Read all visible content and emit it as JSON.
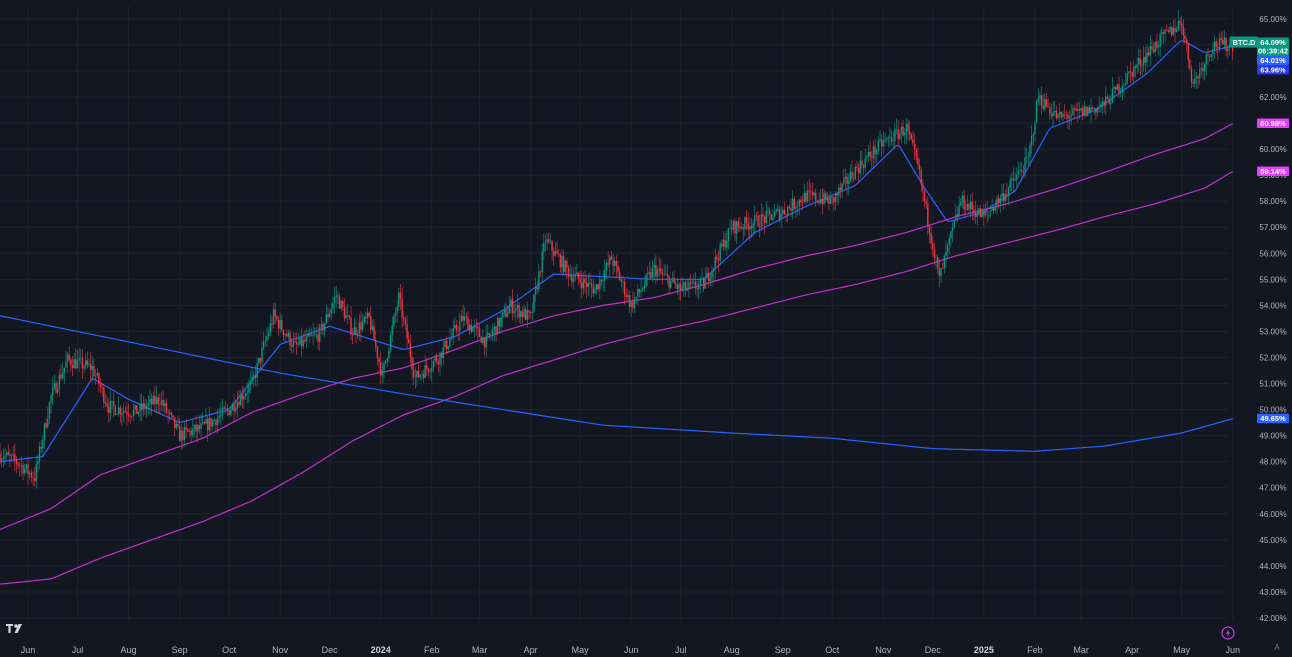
{
  "chart_data": {
    "type": "candlestick",
    "symbol": "BTC.D",
    "y_axis": {
      "unit": "%",
      "ylim": [
        42.0,
        65.3
      ],
      "ticks": [
        "65.00%",
        "64.00%",
        "63.00%",
        "62.00%",
        "61.00%",
        "60.00%",
        "59.00%",
        "58.00%",
        "57.00%",
        "56.00%",
        "55.00%",
        "54.00%",
        "53.00%",
        "52.00%",
        "51.00%",
        "50.00%",
        "49.00%",
        "48.00%",
        "47.00%",
        "46.00%",
        "45.00%",
        "44.00%",
        "43.00%",
        "42.00%"
      ]
    },
    "x_axis": {
      "range": [
        "2023-05-15",
        "2025-06-03"
      ],
      "ticks": [
        {
          "label": "Jun",
          "date": "2023-06-01"
        },
        {
          "label": "Jul",
          "date": "2023-07-01"
        },
        {
          "label": "Aug",
          "date": "2023-08-01"
        },
        {
          "label": "Sep",
          "date": "2023-09-01"
        },
        {
          "label": "Oct",
          "date": "2023-10-01"
        },
        {
          "label": "Nov",
          "date": "2023-11-01"
        },
        {
          "label": "Dec",
          "date": "2023-12-01"
        },
        {
          "label": "2024",
          "date": "2024-01-01",
          "bold": true
        },
        {
          "label": "Feb",
          "date": "2024-02-01"
        },
        {
          "label": "Mar",
          "date": "2024-03-01"
        },
        {
          "label": "Apr",
          "date": "2024-04-01"
        },
        {
          "label": "May",
          "date": "2024-05-01"
        },
        {
          "label": "Jun",
          "date": "2024-06-01"
        },
        {
          "label": "Jul",
          "date": "2024-07-01"
        },
        {
          "label": "Aug",
          "date": "2024-08-01"
        },
        {
          "label": "Sep",
          "date": "2024-09-01"
        },
        {
          "label": "Oct",
          "date": "2024-10-01"
        },
        {
          "label": "Nov",
          "date": "2024-11-01"
        },
        {
          "label": "Dec",
          "date": "2024-12-01"
        },
        {
          "label": "2025",
          "date": "2025-01-01",
          "bold": true
        },
        {
          "label": "Feb",
          "date": "2025-02-01"
        },
        {
          "label": "Mar",
          "date": "2025-03-01"
        },
        {
          "label": "Apr",
          "date": "2025-04-01"
        },
        {
          "label": "May",
          "date": "2025-05-01"
        },
        {
          "label": "Jun",
          "date": "2025-06-01"
        }
      ]
    },
    "price_anchors": [
      [
        "2023-05-15",
        48.3
      ],
      [
        "2023-05-25",
        48.0
      ],
      [
        "2023-06-05",
        47.4
      ],
      [
        "2023-06-15",
        50.5
      ],
      [
        "2023-06-25",
        51.9
      ],
      [
        "2023-07-10",
        51.6
      ],
      [
        "2023-07-20",
        50.1
      ],
      [
        "2023-08-05",
        49.9
      ],
      [
        "2023-08-20",
        50.4
      ],
      [
        "2023-09-01",
        49.0
      ],
      [
        "2023-09-15",
        49.3
      ],
      [
        "2023-10-01",
        50.0
      ],
      [
        "2023-10-15",
        51.0
      ],
      [
        "2023-10-28",
        53.6
      ],
      [
        "2023-11-10",
        52.4
      ],
      [
        "2023-11-25",
        52.9
      ],
      [
        "2023-12-05",
        54.4
      ],
      [
        "2023-12-15",
        53.0
      ],
      [
        "2023-12-25",
        53.5
      ],
      [
        "2024-01-02",
        51.3
      ],
      [
        "2024-01-12",
        54.3
      ],
      [
        "2024-01-22",
        51.2
      ],
      [
        "2024-02-05",
        52.0
      ],
      [
        "2024-02-20",
        53.5
      ],
      [
        "2024-03-05",
        52.6
      ],
      [
        "2024-03-20",
        54.0
      ],
      [
        "2024-04-01",
        53.5
      ],
      [
        "2024-04-10",
        56.5
      ],
      [
        "2024-04-25",
        55.2
      ],
      [
        "2024-05-10",
        54.6
      ],
      [
        "2024-05-20",
        55.8
      ],
      [
        "2024-06-01",
        54.0
      ],
      [
        "2024-06-15",
        55.4
      ],
      [
        "2024-07-01",
        54.6
      ],
      [
        "2024-07-15",
        54.8
      ],
      [
        "2024-08-01",
        57.0
      ],
      [
        "2024-08-15",
        57.2
      ],
      [
        "2024-09-01",
        57.6
      ],
      [
        "2024-09-15",
        58.2
      ],
      [
        "2024-10-01",
        58.0
      ],
      [
        "2024-10-15",
        59.2
      ],
      [
        "2024-10-31",
        60.2
      ],
      [
        "2024-11-15",
        60.8
      ],
      [
        "2024-11-22",
        59.3
      ],
      [
        "2024-12-05",
        55.0
      ],
      [
        "2024-12-18",
        58.0
      ],
      [
        "2025-01-01",
        57.4
      ],
      [
        "2025-01-15",
        58.4
      ],
      [
        "2025-01-28",
        59.6
      ],
      [
        "2025-02-03",
        62.0
      ],
      [
        "2025-02-15",
        61.2
      ],
      [
        "2025-03-01",
        61.4
      ],
      [
        "2025-03-15",
        61.7
      ],
      [
        "2025-04-01",
        63.0
      ],
      [
        "2025-04-15",
        64.0
      ],
      [
        "2025-05-01",
        64.9
      ],
      [
        "2025-05-08",
        62.5
      ],
      [
        "2025-05-20",
        64.0
      ],
      [
        "2025-06-01",
        64.0
      ]
    ],
    "series": [
      {
        "name": "ma-short",
        "color": "#2962ff",
        "points": [
          [
            "2023-05-15",
            48.0
          ],
          [
            "2023-06-10",
            48.2
          ],
          [
            "2023-07-10",
            51.2
          ],
          [
            "2023-08-01",
            50.4
          ],
          [
            "2023-09-01",
            49.5
          ],
          [
            "2023-10-01",
            50.0
          ],
          [
            "2023-11-01",
            52.5
          ],
          [
            "2023-12-01",
            53.2
          ],
          [
            "2024-01-15",
            52.3
          ],
          [
            "2024-02-15",
            52.8
          ],
          [
            "2024-03-15",
            53.8
          ],
          [
            "2024-04-15",
            55.2
          ],
          [
            "2024-05-15",
            55.1
          ],
          [
            "2024-06-15",
            55.0
          ],
          [
            "2024-07-15",
            55.0
          ],
          [
            "2024-08-15",
            56.8
          ],
          [
            "2024-09-15",
            57.8
          ],
          [
            "2024-10-15",
            58.6
          ],
          [
            "2024-11-10",
            60.2
          ],
          [
            "2024-11-25",
            58.6
          ],
          [
            "2024-12-10",
            57.2
          ],
          [
            "2025-01-01",
            57.6
          ],
          [
            "2025-01-20",
            58.4
          ],
          [
            "2025-02-10",
            60.8
          ],
          [
            "2025-03-10",
            61.5
          ],
          [
            "2025-04-10",
            62.9
          ],
          [
            "2025-05-01",
            64.2
          ],
          [
            "2025-05-15",
            63.7
          ],
          [
            "2025-06-01",
            63.96
          ]
        ]
      },
      {
        "name": "ma-200",
        "color": "#c330c8",
        "points": [
          [
            "2023-05-15",
            45.4
          ],
          [
            "2023-06-15",
            46.2
          ],
          [
            "2023-07-15",
            47.5
          ],
          [
            "2023-08-15",
            48.2
          ],
          [
            "2023-09-15",
            48.9
          ],
          [
            "2023-10-15",
            49.9
          ],
          [
            "2023-11-15",
            50.6
          ],
          [
            "2023-12-15",
            51.2
          ],
          [
            "2024-01-15",
            51.6
          ],
          [
            "2024-02-15",
            52.3
          ],
          [
            "2024-03-15",
            53.0
          ],
          [
            "2024-04-15",
            53.6
          ],
          [
            "2024-05-15",
            54.0
          ],
          [
            "2024-06-15",
            54.3
          ],
          [
            "2024-07-15",
            54.8
          ],
          [
            "2024-08-15",
            55.4
          ],
          [
            "2024-09-15",
            55.9
          ],
          [
            "2024-10-15",
            56.3
          ],
          [
            "2024-11-15",
            56.8
          ],
          [
            "2024-12-15",
            57.4
          ],
          [
            "2025-01-15",
            57.9
          ],
          [
            "2025-02-15",
            58.5
          ],
          [
            "2025-03-15",
            59.1
          ],
          [
            "2025-04-15",
            59.8
          ],
          [
            "2025-05-15",
            60.4
          ],
          [
            "2025-06-01",
            60.98
          ]
        ]
      },
      {
        "name": "ma-365",
        "color": "#c330c8",
        "points": [
          [
            "2023-05-15",
            43.3
          ],
          [
            "2023-06-15",
            43.5
          ],
          [
            "2023-07-15",
            44.3
          ],
          [
            "2023-08-15",
            45.0
          ],
          [
            "2023-09-15",
            45.7
          ],
          [
            "2023-10-15",
            46.5
          ],
          [
            "2023-11-15",
            47.6
          ],
          [
            "2023-12-15",
            48.8
          ],
          [
            "2024-01-15",
            49.8
          ],
          [
            "2024-02-15",
            50.5
          ],
          [
            "2024-03-15",
            51.3
          ],
          [
            "2024-04-15",
            51.9
          ],
          [
            "2024-05-15",
            52.5
          ],
          [
            "2024-06-15",
            53.0
          ],
          [
            "2024-07-15",
            53.4
          ],
          [
            "2024-08-15",
            53.9
          ],
          [
            "2024-09-15",
            54.4
          ],
          [
            "2024-10-15",
            54.8
          ],
          [
            "2024-11-15",
            55.3
          ],
          [
            "2024-12-15",
            55.9
          ],
          [
            "2025-01-15",
            56.4
          ],
          [
            "2025-02-15",
            56.9
          ],
          [
            "2025-03-15",
            57.4
          ],
          [
            "2025-04-15",
            57.9
          ],
          [
            "2025-05-15",
            58.5
          ],
          [
            "2025-06-01",
            59.14
          ]
        ]
      },
      {
        "name": "ma-long",
        "color": "#2962ff",
        "points": [
          [
            "2023-05-15",
            53.6
          ],
          [
            "2023-08-01",
            52.6
          ],
          [
            "2023-11-01",
            51.4
          ],
          [
            "2024-01-15",
            50.6
          ],
          [
            "2024-03-15",
            50.0
          ],
          [
            "2024-05-15",
            49.4
          ],
          [
            "2024-08-01",
            49.1
          ],
          [
            "2024-10-01",
            48.9
          ],
          [
            "2024-12-01",
            48.5
          ],
          [
            "2025-02-01",
            48.4
          ],
          [
            "2025-03-15",
            48.6
          ],
          [
            "2025-05-01",
            49.1
          ],
          [
            "2025-06-01",
            49.65
          ]
        ]
      }
    ],
    "price_tags": [
      {
        "value": 64.09,
        "label": "64.09%",
        "sub": "06:39:42",
        "color": "#089981"
      },
      {
        "value": 64.01,
        "label": "64.01%",
        "color": "#2962ff"
      },
      {
        "value": 63.96,
        "label": "63.96%",
        "color": "#2937f0"
      },
      {
        "value": 60.98,
        "label": "60.98%",
        "color": "#e040fb"
      },
      {
        "value": 59.14,
        "label": "59.14%",
        "color": "#e040fb"
      },
      {
        "value": 49.65,
        "label": "49.65%",
        "color": "#2962ff"
      }
    ],
    "candle_up_color": "#089981",
    "candle_down_color": "#f23645",
    "grid": true
  }
}
